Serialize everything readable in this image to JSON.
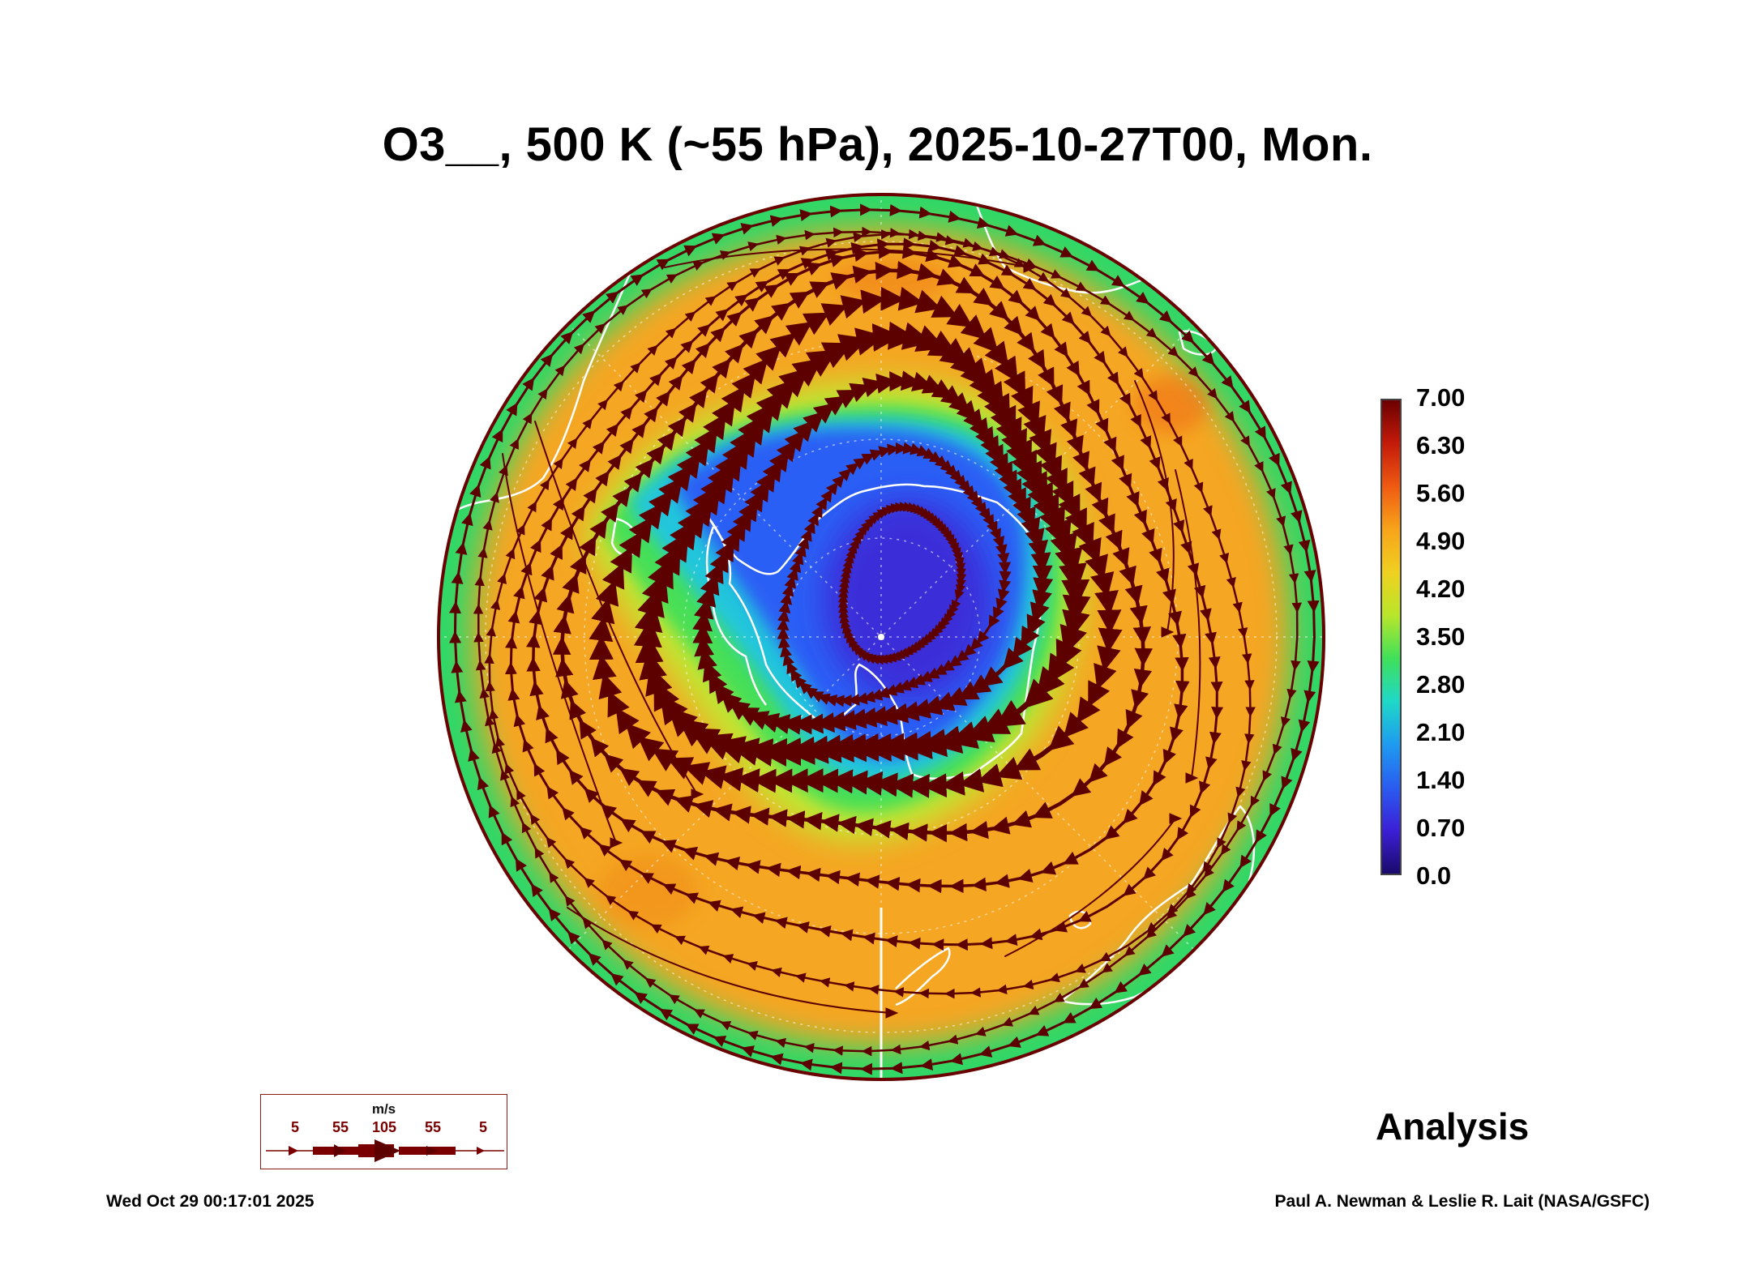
{
  "title": "O3__, 500 K (~55 hPa), 2025-10-27T00, Mon.",
  "colorbar": {
    "labels": [
      "7.00",
      "6.30",
      "5.60",
      "4.90",
      "4.20",
      "3.50",
      "2.80",
      "2.10",
      "1.40",
      "0.70",
      "0.0"
    ],
    "colors": [
      "#1a0a6b",
      "#3b1fd6",
      "#2a5cf0",
      "#1e9bf0",
      "#1fd8c8",
      "#3fe05a",
      "#b8e62a",
      "#f0d020",
      "#f7a41a",
      "#ef5a12",
      "#c41a0a",
      "#6b0000"
    ]
  },
  "map_colors": {
    "core": "#3a2fd9",
    "inner": "#2c5ff5",
    "ring_cyan": "#23c6dc",
    "ring_green": "#46df56",
    "ring_yellow": "#c3e632",
    "body_orange": "#f5a620",
    "rim_green": "#2fd868",
    "streamline": "#5c0000",
    "coast": "#ffffff"
  },
  "legend": {
    "unit": "m/s",
    "labels": [
      "5",
      "55",
      "105",
      "55",
      "5"
    ]
  },
  "analysis_label": "Analysis",
  "timestamp": "Wed Oct 29 00:17:01 2025",
  "credit": "Paul A. Newman & Leslie R. Lait (NASA/GSFC)"
}
